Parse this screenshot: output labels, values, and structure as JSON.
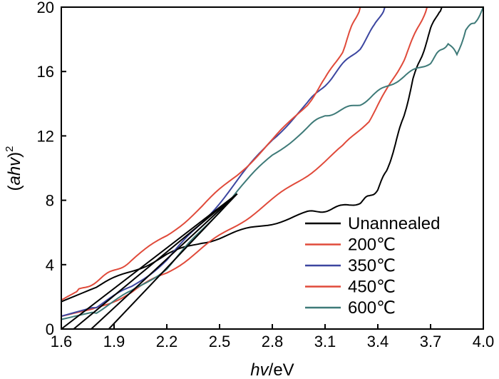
{
  "chart_data": {
    "type": "line",
    "title": "",
    "xlabel_italic": "hv",
    "xlabel_rest": "/eV",
    "ylabel_prefix": "(",
    "ylabel_italic": "ahv",
    "ylabel_suffix": ")",
    "ylabel_sup": "2",
    "xlim": [
      1.6,
      4.0
    ],
    "ylim": [
      0,
      20
    ],
    "xticks": [
      1.6,
      1.9,
      2.2,
      2.5,
      2.8,
      3.1,
      3.4,
      3.7,
      4.0
    ],
    "xtick_labels": [
      "1.6",
      "1.9",
      "2.2",
      "2.5",
      "2.8",
      "3.1",
      "3.4",
      "3.7",
      "4.0"
    ],
    "yticks": [
      0,
      4,
      8,
      12,
      16,
      20
    ],
    "ytick_labels": [
      "0",
      "4",
      "8",
      "12",
      "16",
      "20"
    ],
    "grid": false,
    "legend_position": "bottom-right",
    "series": [
      {
        "name": "Unannealed",
        "color": "#000000",
        "x": [
          1.6,
          1.8,
          2.0,
          2.2,
          2.4,
          2.6,
          2.8,
          3.0,
          3.1,
          3.2,
          3.3,
          3.35,
          3.4,
          3.45,
          3.5,
          3.55,
          3.6,
          3.65,
          3.7,
          3.75,
          3.77
        ],
        "y": [
          1.7,
          2.6,
          3.6,
          4.6,
          5.4,
          6.0,
          6.6,
          7.2,
          7.4,
          7.6,
          7.9,
          8.2,
          8.7,
          9.8,
          11.5,
          13.3,
          15.5,
          17.0,
          18.6,
          19.8,
          20.0
        ]
      },
      {
        "name": "200℃",
        "color": "#e04a3a",
        "x": [
          1.6,
          1.8,
          2.0,
          2.2,
          2.4,
          2.6,
          2.8,
          3.0,
          3.2,
          3.35,
          3.45,
          3.55,
          3.62,
          3.68
        ],
        "y": [
          0.8,
          1.3,
          2.3,
          3.5,
          5.0,
          6.5,
          8.0,
          9.6,
          11.3,
          13.0,
          14.8,
          16.8,
          18.5,
          20.0
        ]
      },
      {
        "name": "350℃",
        "color": "#3c46a0",
        "x": [
          1.6,
          1.8,
          2.0,
          2.2,
          2.4,
          2.6,
          2.8,
          3.0,
          3.1,
          3.2,
          3.3,
          3.38,
          3.44
        ],
        "y": [
          0.8,
          1.4,
          2.6,
          4.3,
          6.6,
          9.2,
          11.8,
          14.0,
          15.2,
          16.4,
          17.5,
          18.8,
          20.0
        ]
      },
      {
        "name": "450℃",
        "color": "#e04a3a",
        "x": [
          1.6,
          1.7,
          1.8,
          1.9,
          2.0,
          2.2,
          2.4,
          2.6,
          2.8,
          3.0,
          3.1,
          3.2,
          3.25,
          3.3
        ],
        "y": [
          1.8,
          2.4,
          3.0,
          3.6,
          4.3,
          5.8,
          7.6,
          9.6,
          11.7,
          14.0,
          15.5,
          17.3,
          18.7,
          20.0
        ]
      },
      {
        "name": "600℃",
        "color": "#3e7a78",
        "x": [
          1.6,
          1.8,
          2.0,
          2.2,
          2.4,
          2.6,
          2.8,
          3.0,
          3.1,
          3.2,
          3.3,
          3.4,
          3.5,
          3.6,
          3.7,
          3.75,
          3.8,
          3.85,
          3.9,
          3.95,
          4.0
        ],
        "y": [
          0.6,
          1.1,
          2.3,
          3.8,
          6.1,
          8.6,
          10.8,
          12.5,
          13.3,
          13.6,
          14.0,
          14.7,
          15.4,
          16.0,
          16.6,
          17.2,
          17.8,
          17.0,
          18.6,
          19.0,
          20.0
        ]
      }
    ],
    "fit_lines": [
      {
        "color": "#000000",
        "x": [
          1.6,
          2.6
        ],
        "y": [
          0.0,
          8.4
        ]
      },
      {
        "color": "#000000",
        "x": [
          1.67,
          2.6
        ],
        "y": [
          0.0,
          8.4
        ]
      },
      {
        "color": "#000000",
        "x": [
          1.77,
          2.6
        ],
        "y": [
          0.0,
          8.4
        ]
      },
      {
        "color": "#000000",
        "x": [
          1.87,
          2.6
        ],
        "y": [
          0.0,
          8.4
        ]
      }
    ]
  }
}
